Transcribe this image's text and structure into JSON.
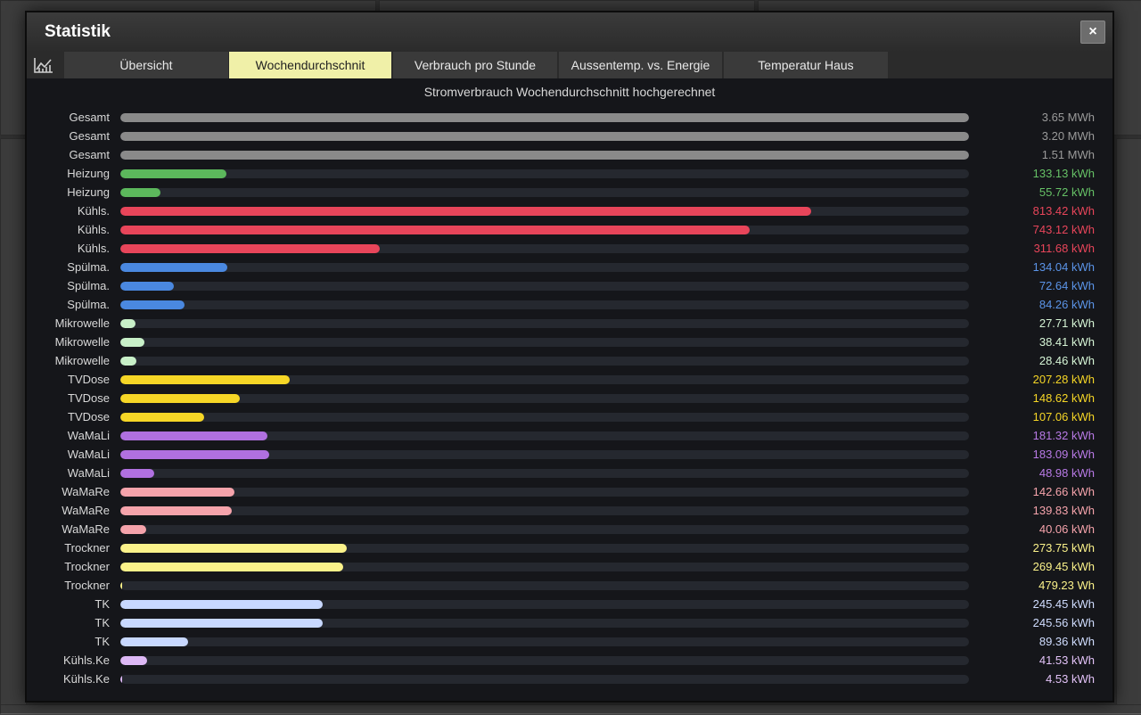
{
  "dialog": {
    "title": "Statistik",
    "close_label": "×"
  },
  "tabs": [
    {
      "label": "Übersicht",
      "active": false
    },
    {
      "label": "Wochendurchschnit",
      "active": true
    },
    {
      "label": "Verbrauch pro Stunde",
      "active": false
    },
    {
      "label": "Aussentemp. vs. Energie",
      "active": false
    },
    {
      "label": "Temperatur Haus",
      "active": false
    }
  ],
  "chart_data": {
    "type": "bar",
    "title": "Stromverbrauch Wochendurchschnitt hochgerechnet",
    "orientation": "horizontal",
    "rows": [
      {
        "label": "Gesamt",
        "value_text": "3.65 MWh",
        "fraction": 1.0,
        "color": "#8a8a8a",
        "text_color": "#9a9a9a"
      },
      {
        "label": "Gesamt",
        "value_text": "3.20 MWh",
        "fraction": 1.0,
        "color": "#8a8a8a",
        "text_color": "#9a9a9a"
      },
      {
        "label": "Gesamt",
        "value_text": "1.51 MWh",
        "fraction": 1.0,
        "color": "#8a8a8a",
        "text_color": "#9a9a9a"
      },
      {
        "label": "Heizung",
        "value_text": "133.13 kWh",
        "fraction": 0.125,
        "color": "#5cb85c",
        "text_color": "#66c166"
      },
      {
        "label": "Heizung",
        "value_text": "55.72 kWh",
        "fraction": 0.047,
        "color": "#5cb85c",
        "text_color": "#66c166"
      },
      {
        "label": "Kühls.",
        "value_text": "813.42 kWh",
        "fraction": 0.814,
        "color": "#e8455a",
        "text_color": "#e8455a"
      },
      {
        "label": "Kühls.",
        "value_text": "743.12 kWh",
        "fraction": 0.742,
        "color": "#e8455a",
        "text_color": "#e8455a"
      },
      {
        "label": "Kühls.",
        "value_text": "311.68 kWh",
        "fraction": 0.306,
        "color": "#e8455a",
        "text_color": "#e8455a"
      },
      {
        "label": "Spülma.",
        "value_text": "134.04 kWh",
        "fraction": 0.126,
        "color": "#4a88e0",
        "text_color": "#5b94e8"
      },
      {
        "label": "Spülma.",
        "value_text": "72.64 kWh",
        "fraction": 0.063,
        "color": "#4a88e0",
        "text_color": "#5b94e8"
      },
      {
        "label": "Spülma.",
        "value_text": "84.26 kWh",
        "fraction": 0.076,
        "color": "#4a88e0",
        "text_color": "#5b94e8"
      },
      {
        "label": "Mikrowelle",
        "value_text": "27.71 kWh",
        "fraction": 0.018,
        "color": "#c8f0c8",
        "text_color": "#d6f5d6"
      },
      {
        "label": "Mikrowelle",
        "value_text": "38.41 kWh",
        "fraction": 0.028,
        "color": "#c8f0c8",
        "text_color": "#d6f5d6"
      },
      {
        "label": "Mikrowelle",
        "value_text": "28.46 kWh",
        "fraction": 0.019,
        "color": "#c8f0c8",
        "text_color": "#d6f5d6"
      },
      {
        "label": "TVDose",
        "value_text": "207.28 kWh",
        "fraction": 0.2,
        "color": "#f6d626",
        "text_color": "#f6d626"
      },
      {
        "label": "TVDose",
        "value_text": "148.62 kWh",
        "fraction": 0.141,
        "color": "#f6d626",
        "text_color": "#f6d626"
      },
      {
        "label": "TVDose",
        "value_text": "107.06 kWh",
        "fraction": 0.099,
        "color": "#f6d626",
        "text_color": "#f6d626"
      },
      {
        "label": "WaMaLi",
        "value_text": "181.32 kWh",
        "fraction": 0.173,
        "color": "#b070e0",
        "text_color": "#b87ae6"
      },
      {
        "label": "WaMaLi",
        "value_text": "183.09 kWh",
        "fraction": 0.175,
        "color": "#b070e0",
        "text_color": "#b87ae6"
      },
      {
        "label": "WaMaLi",
        "value_text": "48.98 kWh",
        "fraction": 0.04,
        "color": "#b070e0",
        "text_color": "#b87ae6"
      },
      {
        "label": "WaMaRe",
        "value_text": "142.66 kWh",
        "fraction": 0.134,
        "color": "#f5a3ab",
        "text_color": "#f5a3ab"
      },
      {
        "label": "WaMaRe",
        "value_text": "139.83 kWh",
        "fraction": 0.131,
        "color": "#f5a3ab",
        "text_color": "#f5a3ab"
      },
      {
        "label": "WaMaRe",
        "value_text": "40.06 kWh",
        "fraction": 0.03,
        "color": "#f5a3ab",
        "text_color": "#f5a3ab"
      },
      {
        "label": "Trockner",
        "value_text": "273.75 kWh",
        "fraction": 0.267,
        "color": "#fbf28a",
        "text_color": "#fbf28a"
      },
      {
        "label": "Trockner",
        "value_text": "269.45 kWh",
        "fraction": 0.263,
        "color": "#fbf28a",
        "text_color": "#fbf28a"
      },
      {
        "label": "Trockner",
        "value_text": "479.23 Wh",
        "fraction": 0.0015,
        "color": "#fbf28a",
        "text_color": "#fbf28a"
      },
      {
        "label": "TK",
        "value_text": "245.45 kWh",
        "fraction": 0.238,
        "color": "#c8d8ff",
        "text_color": "#d0ddff"
      },
      {
        "label": "TK",
        "value_text": "245.56 kWh",
        "fraction": 0.238,
        "color": "#c8d8ff",
        "text_color": "#d0ddff"
      },
      {
        "label": "TK",
        "value_text": "89.36 kWh",
        "fraction": 0.08,
        "color": "#c8d8ff",
        "text_color": "#d0ddff"
      },
      {
        "label": "Kühls.Ke",
        "value_text": "41.53 kWh",
        "fraction": 0.031,
        "color": "#ddb8f5",
        "text_color": "#e2c2f7"
      },
      {
        "label": "Kühls.Ke",
        "value_text": "4.53 kWh",
        "fraction": 0.0015,
        "color": "#ddb8f5",
        "text_color": "#e2c2f7"
      }
    ]
  }
}
